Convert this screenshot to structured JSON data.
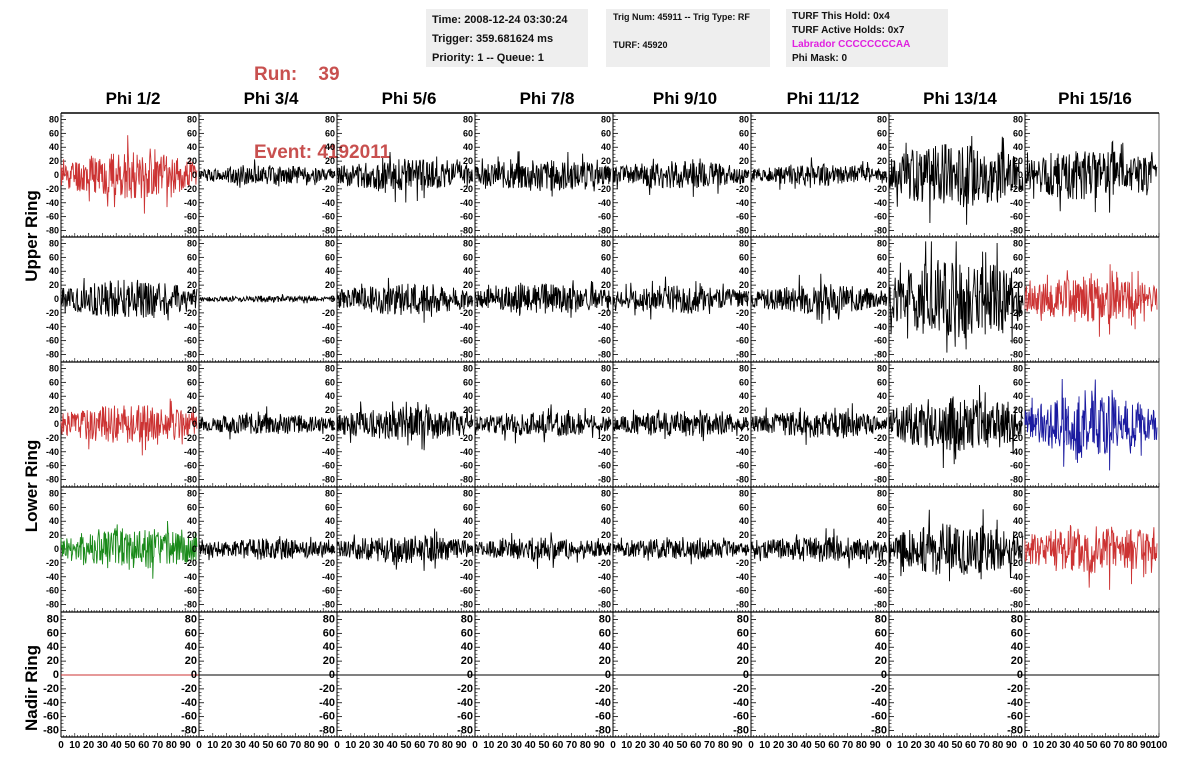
{
  "header": {
    "run_label": "Run:",
    "run_value": "39",
    "event_label": "Event:",
    "event_value": "4192011",
    "time": "Time: 2008-12-24 03:30:24",
    "trigger": "Trigger: 359.681624 ms",
    "priority": "Priority: 1 -- Queue: 1",
    "trig_num": "Trig Num: 45911 -- Trig Type: RF",
    "turf": "TURF: 45920",
    "turf_this_hold": "TURF This Hold: 0x4",
    "turf_active_holds": "TURF Active Holds: 0x7",
    "labrador": "Labrador CCCCCCCCAA",
    "phi_mask": "Phi Mask: 0"
  },
  "colors": {
    "run": "#c8504f",
    "labrador": "#e020e0",
    "trace_default": "#000000",
    "trace_red": "#cc3333",
    "trace_blue": "#1a1aa0",
    "trace_green": "#1a8a1a"
  },
  "chart_data": {
    "type": "line",
    "title": "",
    "column_labels": [
      "Phi 1/2",
      "Phi 3/4",
      "Phi 5/6",
      "Phi 7/8",
      "Phi 9/10",
      "Phi 11/12",
      "Phi 13/14",
      "Phi 15/16"
    ],
    "row_labels": [
      "Upper Ring",
      "Lower Ring",
      "Nadir Ring"
    ],
    "xlim": [
      0,
      100
    ],
    "ylim": [
      -85,
      85
    ],
    "x_ticks": [
      0,
      10,
      20,
      30,
      40,
      50,
      60,
      70,
      80,
      90
    ],
    "y_ticks": [
      80,
      60,
      40,
      20,
      0,
      -20,
      -40,
      -60,
      -80
    ],
    "x_tick_labels_last_column": [
      0,
      10,
      20,
      30,
      40,
      50,
      60,
      70,
      80,
      90,
      100
    ],
    "panels": [
      {
        "row": 1,
        "col": 1,
        "color": "red",
        "amplitude": 22,
        "seed": 11
      },
      {
        "row": 1,
        "col": 2,
        "color": "black",
        "amplitude": 9,
        "seed": 12
      },
      {
        "row": 1,
        "col": 3,
        "color": "black",
        "amplitude": 15,
        "seed": 13
      },
      {
        "row": 1,
        "col": 4,
        "color": "black",
        "amplitude": 15,
        "seed": 14
      },
      {
        "row": 1,
        "col": 5,
        "color": "black",
        "amplitude": 13,
        "seed": 15
      },
      {
        "row": 1,
        "col": 6,
        "color": "black",
        "amplitude": 10,
        "seed": 16
      },
      {
        "row": 1,
        "col": 7,
        "color": "black",
        "amplitude": 30,
        "seed": 17
      },
      {
        "row": 1,
        "col": 8,
        "color": "black",
        "amplitude": 24,
        "seed": 18
      },
      {
        "row": 2,
        "col": 1,
        "color": "black",
        "amplitude": 18,
        "seed": 21
      },
      {
        "row": 2,
        "col": 2,
        "color": "black",
        "amplitude": 3,
        "seed": 22
      },
      {
        "row": 2,
        "col": 3,
        "color": "black",
        "amplitude": 15,
        "seed": 23
      },
      {
        "row": 2,
        "col": 4,
        "color": "black",
        "amplitude": 14,
        "seed": 24
      },
      {
        "row": 2,
        "col": 5,
        "color": "black",
        "amplitude": 13,
        "seed": 25
      },
      {
        "row": 2,
        "col": 6,
        "color": "black",
        "amplitude": 14,
        "seed": 26
      },
      {
        "row": 2,
        "col": 7,
        "color": "black",
        "amplitude": 38,
        "seed": 27
      },
      {
        "row": 2,
        "col": 8,
        "color": "red",
        "amplitude": 22,
        "seed": 28
      },
      {
        "row": 3,
        "col": 1,
        "color": "red",
        "amplitude": 18,
        "seed": 31
      },
      {
        "row": 3,
        "col": 2,
        "color": "black",
        "amplitude": 10,
        "seed": 32
      },
      {
        "row": 3,
        "col": 3,
        "color": "black",
        "amplitude": 16,
        "seed": 33
      },
      {
        "row": 3,
        "col": 4,
        "color": "black",
        "amplitude": 12,
        "seed": 34
      },
      {
        "row": 3,
        "col": 5,
        "color": "black",
        "amplitude": 12,
        "seed": 35
      },
      {
        "row": 3,
        "col": 6,
        "color": "black",
        "amplitude": 13,
        "seed": 36
      },
      {
        "row": 3,
        "col": 7,
        "color": "black",
        "amplitude": 26,
        "seed": 37
      },
      {
        "row": 3,
        "col": 8,
        "color": "blue",
        "amplitude": 28,
        "seed": 38
      },
      {
        "row": 4,
        "col": 1,
        "color": "green",
        "amplitude": 20,
        "seed": 41
      },
      {
        "row": 4,
        "col": 2,
        "color": "black",
        "amplitude": 10,
        "seed": 42
      },
      {
        "row": 4,
        "col": 3,
        "color": "black",
        "amplitude": 13,
        "seed": 43
      },
      {
        "row": 4,
        "col": 4,
        "color": "black",
        "amplitude": 11,
        "seed": 44
      },
      {
        "row": 4,
        "col": 5,
        "color": "black",
        "amplitude": 10,
        "seed": 45
      },
      {
        "row": 4,
        "col": 6,
        "color": "black",
        "amplitude": 12,
        "seed": 46
      },
      {
        "row": 4,
        "col": 7,
        "color": "black",
        "amplitude": 24,
        "seed": 47
      },
      {
        "row": 4,
        "col": 8,
        "color": "red",
        "amplitude": 24,
        "seed": 48
      },
      {
        "row": 5,
        "col": 1,
        "color": "red",
        "amplitude": 0,
        "seed": 0
      },
      {
        "row": 5,
        "col": 2,
        "color": "black",
        "amplitude": 0,
        "seed": 0
      },
      {
        "row": 5,
        "col": 3,
        "color": "black",
        "amplitude": 0,
        "seed": 0
      },
      {
        "row": 5,
        "col": 4,
        "color": "black",
        "amplitude": 0,
        "seed": 0
      },
      {
        "row": 5,
        "col": 5,
        "color": "black",
        "amplitude": 0,
        "seed": 0
      },
      {
        "row": 5,
        "col": 6,
        "color": "black",
        "amplitude": 0,
        "seed": 0
      },
      {
        "row": 5,
        "col": 7,
        "color": "black",
        "amplitude": 0,
        "seed": 0
      },
      {
        "row": 5,
        "col": 8,
        "color": "black",
        "amplitude": 0,
        "seed": 0
      }
    ]
  }
}
